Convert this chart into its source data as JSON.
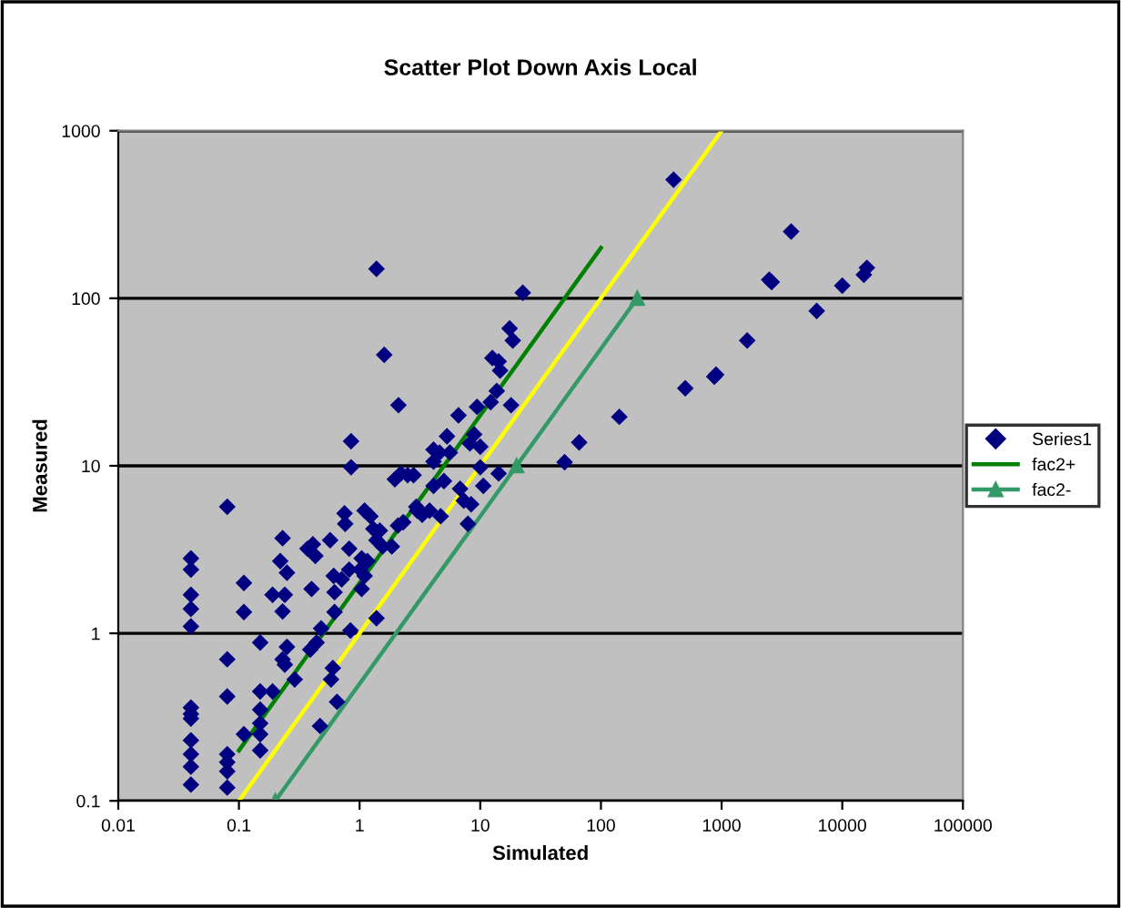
{
  "chart_data": {
    "type": "scatter",
    "title": "Scatter Plot Down Axis Local",
    "xlabel": "Simulated",
    "ylabel": "Measured",
    "log": "xy",
    "grid": "y",
    "legend": "right",
    "xlim": [
      0.01,
      100000
    ],
    "ylim": [
      0.1,
      1000
    ],
    "xticks": [
      {
        "value": 0.01,
        "label": "0.01"
      },
      {
        "value": 0.1,
        "label": "0.1"
      },
      {
        "value": 1,
        "label": "1"
      },
      {
        "value": 10,
        "label": "10"
      },
      {
        "value": 100,
        "label": "100"
      },
      {
        "value": 1000,
        "label": "1000"
      },
      {
        "value": 10000,
        "label": "10000"
      },
      {
        "value": 100000,
        "label": "100000"
      }
    ],
    "yticks": [
      {
        "value": 0.1,
        "label": "0.1"
      },
      {
        "value": 1,
        "label": "1"
      },
      {
        "value": 10,
        "label": "10"
      },
      {
        "value": 100,
        "label": "100"
      },
      {
        "value": 1000,
        "label": "1000"
      }
    ],
    "series": [
      {
        "name": "Series1",
        "color": "#000080",
        "marker": "diamond",
        "x": [
          0.04,
          0.04,
          0.04,
          0.04,
          0.04,
          0.04,
          0.04,
          0.04,
          0.04,
          0.04,
          0.04,
          0.04,
          0.08,
          0.08,
          0.08,
          0.08,
          0.08,
          0.08,
          0.08,
          0.11,
          0.11,
          0.11,
          0.15,
          0.15,
          0.15,
          0.15,
          0.15,
          0.15,
          0.19,
          0.19,
          0.23,
          0.22,
          0.25,
          0.24,
          0.23,
          0.23,
          0.24,
          0.25,
          0.29,
          0.37,
          0.41,
          0.43,
          0.4,
          0.39,
          0.44,
          0.48,
          0.47,
          0.57,
          0.62,
          0.62,
          0.6,
          0.65,
          0.71,
          0.75,
          0.76,
          0.82,
          0.85,
          0.85,
          0.84,
          1.38,
          1.6,
          2.1,
          0.82,
          0.61,
          0.58,
          1.38,
          1.1,
          1.23,
          1.3,
          1.47,
          1.38,
          1.55,
          1.04,
          1.16,
          1.01,
          1.04,
          1.1,
          2.08,
          2.3,
          1.85,
          2.95,
          1.96,
          2.2,
          2.5,
          2.8,
          3.0,
          3.3,
          3.8,
          4.1,
          4.1,
          4.6,
          5.3,
          5.6,
          6.6,
          6.8,
          7.3,
          7.9,
          8.4,
          8.2,
          8.9,
          9.4,
          10,
          10.6,
          10,
          12.2,
          12.6,
          14.2,
          14.6,
          13.7,
          14.2,
          17.5,
          18.6,
          18,
          22.5,
          4.7,
          4.1,
          5,
          50,
          66,
          142,
          400,
          500,
          900,
          870,
          1630,
          2480,
          2600,
          3770,
          6140,
          10000,
          15100,
          16000
        ],
        "values": [
          2.8,
          2.4,
          1.7,
          1.4,
          1.1,
          0.36,
          0.33,
          0.31,
          0.23,
          0.19,
          0.16,
          0.125,
          5.7,
          0.7,
          0.42,
          0.19,
          0.17,
          0.15,
          0.12,
          2.0,
          1.34,
          0.25,
          0.88,
          0.45,
          0.35,
          0.29,
          0.25,
          0.2,
          1.7,
          0.45,
          3.7,
          2.7,
          2.3,
          1.7,
          1.35,
          0.7,
          0.65,
          0.83,
          0.53,
          3.2,
          3.4,
          2.9,
          1.84,
          0.8,
          0.88,
          1.07,
          0.28,
          3.6,
          1.76,
          1.34,
          0.62,
          0.39,
          2.1,
          5.2,
          4.5,
          2.4,
          14,
          9.8,
          1.04,
          150,
          46,
          23,
          3.2,
          2.2,
          0.53,
          1.23,
          5.4,
          5.0,
          4.2,
          4.1,
          3.6,
          3.3,
          2.8,
          2.7,
          2.4,
          1.84,
          2.2,
          4.4,
          4.6,
          3.3,
          5.7,
          8.3,
          9.0,
          8.8,
          8.8,
          5.4,
          5.1,
          5.4,
          12.5,
          10.6,
          12,
          15,
          12,
          20,
          7.3,
          6.2,
          4.5,
          5.9,
          13.6,
          15.4,
          22.5,
          13,
          7.6,
          9.8,
          24,
          44,
          42,
          37,
          28,
          9,
          66,
          56,
          23,
          108,
          5,
          7.6,
          8.1,
          10.5,
          13.8,
          19.6,
          510,
          29,
          35,
          34,
          56,
          129,
          125,
          250,
          84,
          119,
          138,
          152
        ]
      },
      {
        "name": "fac2+",
        "type": "line",
        "color": "#008000",
        "marker": "none",
        "x": [
          0.1,
          100
        ],
        "values": [
          0.2,
          200
        ]
      },
      {
        "name": "fac2-",
        "type": "line",
        "color": "#339966",
        "marker": "triangle",
        "x": [
          0.2,
          20,
          200
        ],
        "values": [
          0.1,
          10,
          100
        ]
      },
      {
        "type": "line",
        "color": "#ffff00",
        "marker": "none",
        "x": [
          0.1,
          1000
        ],
        "values": [
          0.1,
          1000
        ]
      }
    ]
  }
}
